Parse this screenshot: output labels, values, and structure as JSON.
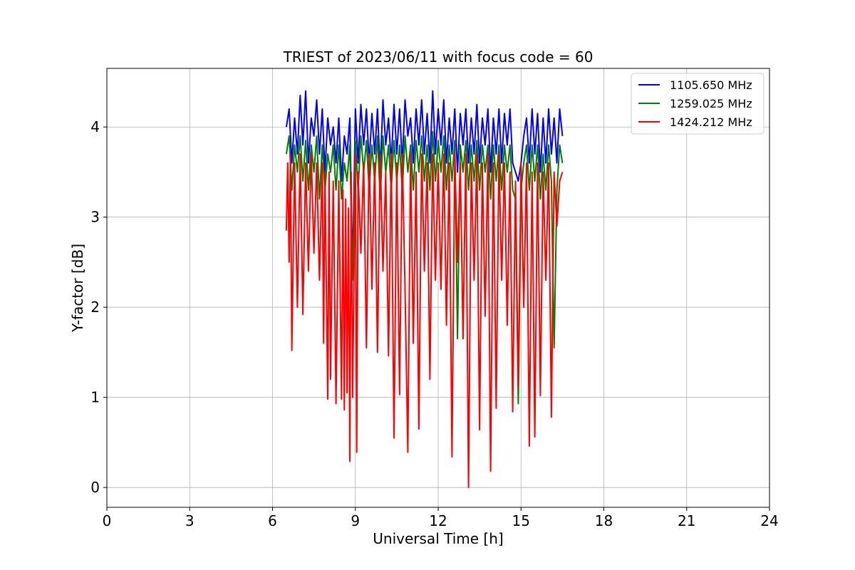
{
  "chart_data": {
    "type": "line",
    "title": "TRIEST of 2023/06/11 with focus code = 60",
    "xlabel": "Universal Time [h]",
    "ylabel": "Y-factor [dB]",
    "xlim": [
      0,
      24
    ],
    "ylim": [
      -0.22,
      4.65
    ],
    "xticks": [
      0,
      3,
      6,
      9,
      12,
      15,
      18,
      21,
      24
    ],
    "yticks": [
      0,
      1,
      2,
      3,
      4
    ],
    "grid": true,
    "legend_position": "top-right",
    "series": [
      {
        "name": "1105.650 MHz",
        "color": "#0000ff",
        "x": [
          6.5,
          6.6,
          6.7,
          6.8,
          6.9,
          7.0,
          7.1,
          7.2,
          7.3,
          7.4,
          7.5,
          7.6,
          7.7,
          7.8,
          7.9,
          8.0,
          8.1,
          8.2,
          8.3,
          8.4,
          8.5,
          8.6,
          8.7,
          8.8,
          8.9,
          9.0,
          9.1,
          9.2,
          9.3,
          9.4,
          9.5,
          9.6,
          9.7,
          9.8,
          9.9,
          10.0,
          10.1,
          10.2,
          10.3,
          10.4,
          10.5,
          10.6,
          10.7,
          10.8,
          10.9,
          11.0,
          11.1,
          11.2,
          11.3,
          11.4,
          11.5,
          11.6,
          11.7,
          11.8,
          11.9,
          12.0,
          12.1,
          12.2,
          12.3,
          12.4,
          12.5,
          12.6,
          12.7,
          12.8,
          12.9,
          13.0,
          13.1,
          13.2,
          13.3,
          13.4,
          13.5,
          13.6,
          13.7,
          13.8,
          13.9,
          14.0,
          14.1,
          14.2,
          14.3,
          14.4,
          14.5,
          14.6,
          14.7,
          14.8,
          14.9,
          15.0,
          15.1,
          15.2,
          15.3,
          15.4,
          15.5,
          15.6,
          15.7,
          15.8,
          15.9,
          16.0,
          16.1,
          16.2,
          16.3,
          16.4,
          16.5
        ],
        "values": [
          4.0,
          4.2,
          3.6,
          4.1,
          3.7,
          4.35,
          3.8,
          4.4,
          3.6,
          4.1,
          3.9,
          4.3,
          3.7,
          4.2,
          3.5,
          4.1,
          3.8,
          4.0,
          3.6,
          4.1,
          3.4,
          3.9,
          3.7,
          4.1,
          2.4,
          4.2,
          3.6,
          4.25,
          3.8,
          4.2,
          3.6,
          4.15,
          3.7,
          4.2,
          3.5,
          4.3,
          3.8,
          4.1,
          3.6,
          4.25,
          3.7,
          4.2,
          3.6,
          4.3,
          3.9,
          4.1,
          3.6,
          4.2,
          3.8,
          4.3,
          3.7,
          4.15,
          3.6,
          4.4,
          3.7,
          4.2,
          3.8,
          4.3,
          3.6,
          4.1,
          3.7,
          4.2,
          3.5,
          4.15,
          3.8,
          4.2,
          3.6,
          4.1,
          3.7,
          4.25,
          3.6,
          4.1,
          3.8,
          4.2,
          3.5,
          4.1,
          3.7,
          4.2,
          3.6,
          4.15,
          3.8,
          4.2,
          3.6,
          3.5,
          3.4,
          3.6,
          3.9,
          4.1,
          3.6,
          4.2,
          3.7,
          4.15,
          3.5,
          4.1,
          3.6,
          4.2,
          3.7,
          4.1,
          3.6,
          4.2,
          3.9
        ]
      },
      {
        "name": "1259.025 MHz",
        "color": "#008000",
        "x": [
          6.5,
          6.6,
          6.7,
          6.8,
          6.9,
          7.0,
          7.1,
          7.2,
          7.3,
          7.4,
          7.5,
          7.6,
          7.7,
          7.8,
          7.9,
          8.0,
          8.1,
          8.2,
          8.3,
          8.4,
          8.5,
          8.6,
          8.7,
          8.8,
          8.9,
          9.0,
          9.1,
          9.2,
          9.3,
          9.4,
          9.5,
          9.6,
          9.7,
          9.8,
          9.9,
          10.0,
          10.1,
          10.2,
          10.3,
          10.4,
          10.5,
          10.6,
          10.7,
          10.8,
          10.9,
          11.0,
          11.1,
          11.2,
          11.3,
          11.4,
          11.5,
          11.6,
          11.7,
          11.8,
          11.9,
          12.0,
          12.1,
          12.2,
          12.3,
          12.4,
          12.5,
          12.6,
          12.7,
          12.8,
          12.9,
          13.0,
          13.1,
          13.2,
          13.3,
          13.4,
          13.5,
          13.6,
          13.7,
          13.8,
          13.9,
          14.0,
          14.1,
          14.2,
          14.3,
          14.4,
          14.5,
          14.6,
          14.7,
          14.8,
          14.9,
          15.0,
          15.1,
          15.2,
          15.3,
          15.4,
          15.5,
          15.6,
          15.7,
          15.8,
          15.9,
          16.0,
          16.1,
          16.2,
          16.3,
          16.4,
          16.5
        ],
        "values": [
          3.7,
          3.9,
          3.3,
          3.8,
          3.5,
          3.9,
          3.4,
          3.85,
          3.3,
          3.8,
          3.5,
          3.9,
          3.2,
          3.8,
          3.3,
          3.7,
          3.5,
          3.8,
          3.3,
          3.8,
          3.2,
          3.6,
          3.4,
          3.8,
          2.3,
          3.85,
          3.3,
          3.9,
          3.5,
          3.85,
          3.3,
          3.8,
          3.4,
          3.9,
          3.2,
          3.9,
          3.5,
          3.8,
          3.3,
          3.85,
          3.4,
          3.8,
          3.3,
          3.9,
          3.5,
          3.8,
          3.3,
          3.85,
          3.5,
          3.9,
          3.4,
          3.8,
          3.3,
          3.95,
          3.4,
          3.85,
          3.5,
          3.9,
          3.3,
          3.8,
          3.4,
          3.85,
          1.65,
          3.8,
          3.5,
          3.85,
          3.3,
          3.8,
          3.4,
          3.85,
          3.3,
          3.8,
          3.5,
          3.8,
          3.2,
          3.8,
          3.4,
          3.8,
          3.3,
          3.8,
          3.5,
          3.8,
          3.3,
          3.2,
          0.93,
          3.3,
          3.6,
          3.8,
          3.3,
          3.8,
          3.4,
          3.8,
          3.2,
          3.7,
          3.3,
          3.8,
          3.4,
          1.55,
          3.3,
          3.8,
          3.6
        ]
      },
      {
        "name": "1424.212 MHz",
        "color": "#ff0000",
        "x": [
          6.5,
          6.55,
          6.6,
          6.65,
          6.7,
          6.8,
          6.9,
          7.0,
          7.1,
          7.2,
          7.3,
          7.4,
          7.5,
          7.6,
          7.7,
          7.8,
          7.85,
          7.9,
          8.0,
          8.05,
          8.1,
          8.2,
          8.3,
          8.4,
          8.5,
          8.55,
          8.6,
          8.65,
          8.7,
          8.75,
          8.8,
          8.85,
          8.9,
          9.0,
          9.05,
          9.1,
          9.2,
          9.3,
          9.4,
          9.5,
          9.6,
          9.7,
          9.8,
          9.9,
          10.0,
          10.1,
          10.2,
          10.3,
          10.4,
          10.5,
          10.6,
          10.7,
          10.8,
          10.9,
          11.0,
          11.1,
          11.2,
          11.3,
          11.4,
          11.5,
          11.6,
          11.7,
          11.8,
          11.9,
          12.0,
          12.1,
          12.2,
          12.3,
          12.4,
          12.5,
          12.6,
          12.7,
          12.8,
          12.9,
          13.0,
          13.1,
          13.2,
          13.3,
          13.4,
          13.5,
          13.6,
          13.7,
          13.8,
          13.9,
          14.0,
          14.1,
          14.2,
          14.3,
          14.4,
          14.5,
          14.6,
          14.7,
          14.8,
          14.9,
          15.0,
          15.1,
          15.2,
          15.3,
          15.4,
          15.5,
          15.6,
          15.7,
          15.8,
          15.9,
          16.0,
          16.1,
          16.2,
          16.3,
          16.4,
          16.5
        ],
        "values": [
          2.85,
          3.6,
          2.5,
          3.7,
          1.52,
          3.6,
          2.0,
          3.7,
          1.92,
          3.6,
          2.4,
          3.7,
          2.6,
          3.6,
          2.3,
          3.6,
          1.6,
          3.5,
          0.98,
          3.5,
          1.2,
          3.4,
          0.93,
          3.4,
          0.98,
          3.3,
          0.86,
          3.2,
          1.05,
          3.1,
          0.29,
          3.5,
          1.0,
          3.7,
          0.39,
          3.5,
          2.6,
          3.6,
          1.55,
          3.7,
          2.2,
          3.6,
          1.5,
          3.7,
          2.4,
          3.5,
          1.46,
          3.7,
          0.55,
          3.6,
          1.03,
          3.7,
          2.2,
          0.39,
          3.7,
          1.6,
          3.5,
          0.65,
          3.7,
          2.4,
          3.6,
          1.2,
          3.7,
          2.3,
          3.6,
          2.2,
          3.7,
          1.8,
          3.6,
          0.34,
          3.7,
          2.5,
          3.6,
          1.65,
          3.7,
          0.0,
          3.6,
          2.3,
          3.7,
          0.64,
          3.6,
          1.9,
          3.7,
          0.18,
          3.6,
          0.88,
          3.7,
          2.3,
          3.6,
          1.8,
          3.5,
          0.84,
          3.4,
          1.1,
          3.6,
          2.0,
          3.6,
          0.46,
          3.5,
          0.56,
          3.6,
          1.02,
          3.5,
          2.3,
          3.6,
          0.78,
          3.5,
          2.9,
          3.4,
          3.5
        ]
      }
    ]
  }
}
